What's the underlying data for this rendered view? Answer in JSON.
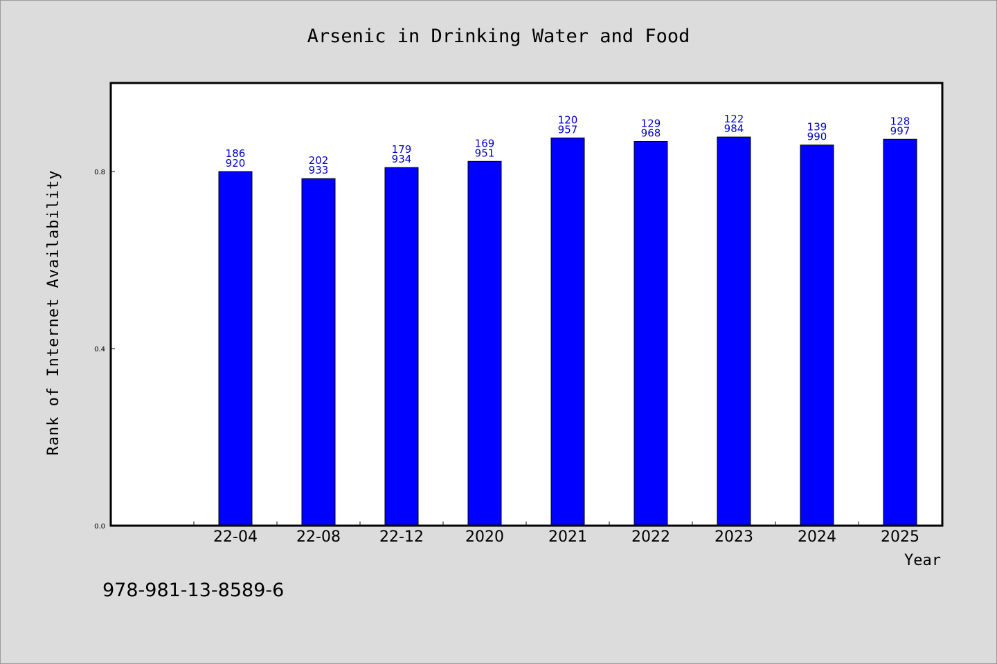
{
  "chart_data": {
    "type": "bar",
    "title": "Arsenic in Drinking Water and Food",
    "xlabel": "Year",
    "ylabel": "Rank of Internet Availability",
    "categories": [
      "22-04",
      "22-08",
      "22-12",
      "2020",
      "2021",
      "2022",
      "2023",
      "2024",
      "2025"
    ],
    "values": [
      0.8,
      0.784,
      0.809,
      0.823,
      0.876,
      0.868,
      0.878,
      0.86,
      0.873
    ],
    "data_labels": [
      [
        "186",
        "920"
      ],
      [
        "202",
        "933"
      ],
      [
        "179",
        "934"
      ],
      [
        "169",
        "951"
      ],
      [
        "120",
        "957"
      ],
      [
        "129",
        "968"
      ],
      [
        "122",
        "984"
      ],
      [
        "139",
        "990"
      ],
      [
        "128",
        "997"
      ]
    ],
    "yticks": [
      "0.0",
      "0.4",
      "0.8"
    ],
    "ylim": [
      0,
      1.0
    ],
    "grid": false,
    "legend": "none",
    "bar_color": "#0000ff",
    "label_color": "#0000cc"
  },
  "footer_text": "978-981-13-8589-6"
}
